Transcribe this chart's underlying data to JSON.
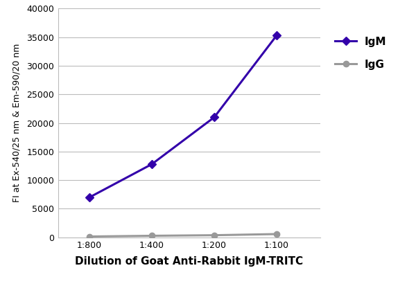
{
  "x_labels": [
    "1:800",
    "1:400",
    "1:200",
    "1:100"
  ],
  "x_values": [
    1,
    2,
    3,
    4
  ],
  "IgM_values": [
    7000,
    12800,
    21000,
    35300
  ],
  "IgG_values": [
    150,
    280,
    380,
    580
  ],
  "IgM_color": "#3300AA",
  "IgG_color": "#999999",
  "ylabel": "FI at Ex-540/25 nm & Em-590/20 nm",
  "xlabel": "Dilution of Goat Anti-Rabbit IgM-TRITC",
  "ylim": [
    0,
    40000
  ],
  "yticks": [
    0,
    5000,
    10000,
    15000,
    20000,
    25000,
    30000,
    35000,
    40000
  ],
  "ytick_labels": [
    "0",
    "5000",
    "10000",
    "15000",
    "20000",
    "25000",
    "30000",
    "35000",
    "40000"
  ],
  "legend_IgM": "IgM",
  "legend_IgG": "IgG",
  "background_color": "#ffffff",
  "line_width": 2.2,
  "marker_size": 6,
  "tick_fontsize": 9,
  "xlabel_fontsize": 11,
  "ylabel_fontsize": 9,
  "legend_fontsize": 11
}
